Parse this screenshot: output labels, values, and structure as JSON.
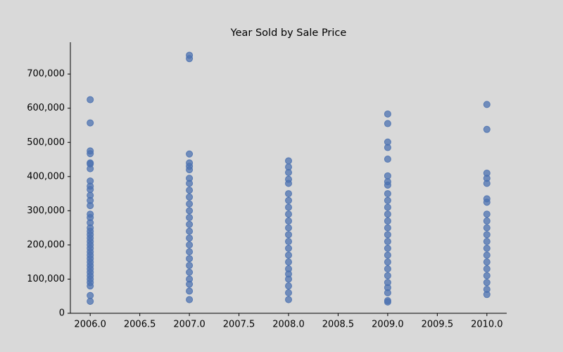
{
  "chart_data": {
    "type": "scatter",
    "title": "Year Sold by Sale Price",
    "color": "#4c72b0",
    "x": [
      2006,
      2006,
      2006,
      2006,
      2006,
      2006,
      2006,
      2006,
      2006,
      2006,
      2006,
      2006,
      2006,
      2006,
      2006,
      2006,
      2006,
      2006,
      2006,
      2006,
      2006,
      2006,
      2006,
      2006,
      2006,
      2006,
      2006,
      2006,
      2006,
      2006,
      2006,
      2006,
      2006,
      2006,
      2006,
      2006,
      2007,
      2007,
      2007,
      2007,
      2007,
      2007,
      2007,
      2007,
      2007,
      2007,
      2007,
      2007,
      2007,
      2007,
      2007,
      2007,
      2007,
      2007,
      2007,
      2007,
      2007,
      2007,
      2007,
      2007,
      2007,
      2008,
      2008,
      2008,
      2008,
      2008,
      2008,
      2008,
      2008,
      2008,
      2008,
      2008,
      2008,
      2008,
      2008,
      2008,
      2008,
      2008,
      2008,
      2008,
      2008,
      2008,
      2008,
      2009,
      2009,
      2009,
      2009,
      2009,
      2009,
      2009,
      2009,
      2009,
      2009,
      2009,
      2009,
      2009,
      2009,
      2009,
      2009,
      2009,
      2009,
      2009,
      2009,
      2009,
      2009,
      2009,
      2009,
      2009,
      2009,
      2010,
      2010,
      2010,
      2010,
      2010,
      2010,
      2010,
      2010,
      2010,
      2010,
      2010,
      2010,
      2010,
      2010,
      2010,
      2010,
      2010,
      2010,
      2010,
      2010
    ],
    "values": [
      625000,
      557000,
      475000,
      467000,
      440000,
      437000,
      423000,
      387000,
      372000,
      362000,
      345000,
      330000,
      315000,
      290000,
      280000,
      265000,
      250000,
      240000,
      230000,
      220000,
      210000,
      200000,
      190000,
      180000,
      170000,
      160000,
      150000,
      140000,
      130000,
      120000,
      110000,
      100000,
      90000,
      80000,
      52000,
      35000,
      755000,
      745000,
      466000,
      440000,
      430000,
      420000,
      395000,
      380000,
      360000,
      340000,
      320000,
      300000,
      280000,
      260000,
      240000,
      220000,
      200000,
      180000,
      160000,
      140000,
      120000,
      100000,
      85000,
      65000,
      40000,
      446000,
      428000,
      412000,
      392000,
      380000,
      350000,
      330000,
      310000,
      290000,
      270000,
      250000,
      230000,
      210000,
      190000,
      170000,
      150000,
      130000,
      115000,
      100000,
      80000,
      60000,
      40000,
      583000,
      555000,
      501000,
      485000,
      451000,
      402000,
      385000,
      375000,
      350000,
      330000,
      310000,
      290000,
      270000,
      250000,
      230000,
      210000,
      190000,
      170000,
      150000,
      130000,
      110000,
      90000,
      75000,
      60000,
      37000,
      33000,
      611000,
      538000,
      410000,
      395000,
      380000,
      335000,
      325000,
      290000,
      270000,
      250000,
      230000,
      210000,
      190000,
      170000,
      150000,
      130000,
      110000,
      90000,
      70000,
      55000
    ],
    "xlim": [
      2005.8,
      2010.2
    ],
    "xticks": [
      {
        "value": 2006,
        "label": "2006.0"
      },
      {
        "value": 2006.5,
        "label": "2006.5"
      },
      {
        "value": 2007,
        "label": "2007.0"
      },
      {
        "value": 2007.5,
        "label": "2007.5"
      },
      {
        "value": 2008,
        "label": "2008.0"
      },
      {
        "value": 2008.5,
        "label": "2008.5"
      },
      {
        "value": 2009,
        "label": "2009.0"
      },
      {
        "value": 2009.5,
        "label": "2009.5"
      },
      {
        "value": 2010,
        "label": "2010.0"
      }
    ],
    "ylim": [
      0,
      793000
    ],
    "yticks": [
      0,
      {
        "value": 100000,
        "label": "100,000"
      },
      {
        "value": 200000,
        "label": "200,000"
      },
      {
        "value": 300000,
        "label": "300,000"
      },
      {
        "value": 400000,
        "label": "400,000"
      },
      {
        "value": 500000,
        "label": "500,000"
      },
      {
        "value": 600000,
        "label": "600,000"
      },
      {
        "value": 700000,
        "label": "700,000"
      }
    ]
  }
}
